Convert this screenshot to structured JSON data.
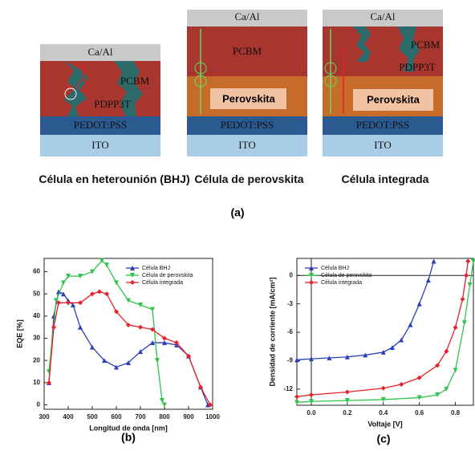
{
  "diagram": {
    "cells": [
      {
        "layers": [
          "Ca/Al",
          "PCBM",
          "PDPP3T",
          "PEDOT:PSS",
          "ITO"
        ],
        "caption": "Célula en heterounión (BHJ)"
      },
      {
        "layers": [
          "Ca/Al",
          "PCBM",
          "Perovskita",
          "PEDOT:PSS",
          "ITO"
        ],
        "caption": "Célula de perovskita"
      },
      {
        "layers": [
          "Ca/Al",
          "PCBM",
          "PDPP3T",
          "Perovskita",
          "PEDOT:PSS",
          "ITO"
        ],
        "caption": "Célula integrada"
      }
    ],
    "label": "(a)"
  },
  "chart_data": [
    {
      "type": "line",
      "label": "(b)",
      "x_label": "Longitud de onda [nm]",
      "y_label": "EQE [%]",
      "xlim": [
        300,
        1000
      ],
      "xticks": [
        300,
        400,
        500,
        600,
        700,
        800,
        900,
        1000
      ],
      "ylim": [
        -2,
        66
      ],
      "yticks": [
        0,
        10,
        20,
        30,
        40,
        50,
        60
      ],
      "legend": "upper right",
      "grid": false,
      "zero_lines": false,
      "series": [
        {
          "name": "Célula BHJ",
          "color": "#2b3fb8",
          "marker": "triangle",
          "x": [
            320,
            340,
            360,
            380,
            400,
            420,
            450,
            500,
            550,
            600,
            650,
            700,
            750,
            800,
            850,
            900,
            950,
            980
          ],
          "values": [
            10,
            40,
            51,
            50,
            47,
            45,
            35,
            26,
            20,
            17,
            19,
            24,
            28,
            28,
            27,
            22,
            8,
            0
          ]
        },
        {
          "name": "Célula de perovskita",
          "color": "#2ec44a",
          "marker": "triangle-down",
          "x": [
            320,
            350,
            380,
            400,
            450,
            500,
            540,
            560,
            600,
            650,
            700,
            750,
            770,
            790,
            800
          ],
          "values": [
            15,
            47,
            55,
            58,
            58,
            60,
            65,
            63,
            55,
            47,
            45,
            43,
            20,
            2,
            0
          ]
        },
        {
          "name": "Célula integrada",
          "color": "#e8202a",
          "marker": "diamond",
          "x": [
            320,
            340,
            360,
            400,
            450,
            500,
            530,
            560,
            600,
            650,
            700,
            750,
            800,
            850,
            900,
            950,
            990
          ],
          "values": [
            10,
            35,
            46,
            46,
            46,
            50,
            51,
            50,
            42,
            36,
            35,
            34,
            30,
            28,
            22,
            8,
            0
          ]
        }
      ]
    },
    {
      "type": "line",
      "label": "(c)",
      "x_label": "Voltaje [V]",
      "y_label": "Densidad de corriente [mA/cm²]",
      "xlim": [
        -0.08,
        0.9
      ],
      "xticks": [
        {
          "value": 0,
          "label": "0.0"
        },
        0.2,
        0.4,
        0.6,
        0.8
      ],
      "ylim": [
        -13.7,
        1.8
      ],
      "yticks": [
        0,
        -3,
        -6,
        -9,
        -12
      ],
      "legend": "upper left",
      "grid": false,
      "zero_lines": true,
      "series": [
        {
          "name": "Célula BHJ",
          "color": "#2b3fb8",
          "marker": "triangle",
          "x": [
            -0.08,
            0,
            0.1,
            0.2,
            0.3,
            0.4,
            0.45,
            0.5,
            0.55,
            0.6,
            0.65,
            0.68
          ],
          "values": [
            -8.9,
            -8.8,
            -8.7,
            -8.6,
            -8.4,
            -8.1,
            -7.6,
            -6.8,
            -5.2,
            -3,
            -0.5,
            1.5
          ]
        },
        {
          "name": "Célula de perovskita",
          "color": "#2ec44a",
          "marker": "triangle-down",
          "x": [
            -0.08,
            0,
            0.2,
            0.4,
            0.6,
            0.7,
            0.75,
            0.8,
            0.85,
            0.88,
            0.9
          ],
          "values": [
            -13.4,
            -13.3,
            -13.2,
            -13.1,
            -12.9,
            -12.6,
            -12,
            -10,
            -5,
            -1,
            1.5
          ]
        },
        {
          "name": "Célula integrada",
          "color": "#e8202a",
          "marker": "diamond",
          "x": [
            -0.08,
            0,
            0.2,
            0.4,
            0.5,
            0.6,
            0.7,
            0.75,
            0.8,
            0.84,
            0.86,
            0.87
          ],
          "values": [
            -12.8,
            -12.6,
            -12.3,
            -11.9,
            -11.5,
            -10.8,
            -9.5,
            -8,
            -5.5,
            -2.5,
            0,
            1.5
          ]
        }
      ]
    }
  ]
}
